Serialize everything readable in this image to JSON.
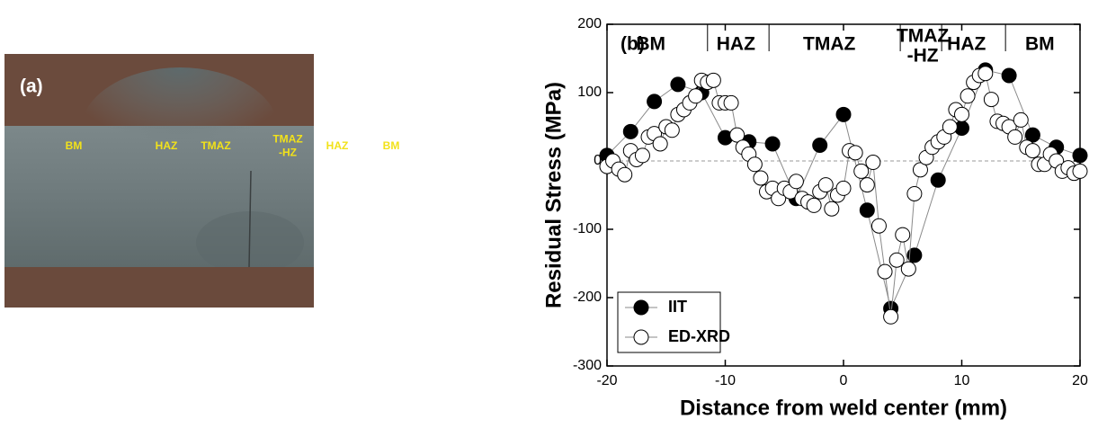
{
  "photo": {
    "panel_label": "(a)",
    "zones": [
      {
        "lines": [
          "BM"
        ]
      },
      {
        "lines": [
          "HAZ"
        ]
      },
      {
        "lines": [
          "TMAZ"
        ]
      },
      {
        "lines": [
          "TMAZ",
          "-HZ"
        ]
      },
      {
        "lines": [
          "HAZ"
        ]
      },
      {
        "lines": [
          "BM"
        ]
      }
    ]
  },
  "chart_data": {
    "type": "line",
    "panel_label": "(b)",
    "xlabel": "Distance from weld center (mm)",
    "ylabel": "Residual Stress (MPa)",
    "xlim": [
      -20,
      20
    ],
    "ylim": [
      -300,
      200
    ],
    "xticks": [
      -20,
      -10,
      0,
      10,
      20
    ],
    "yticks": [
      -300,
      -200,
      -100,
      0,
      100,
      200
    ],
    "grid": false,
    "hline": 0,
    "legend": "lower left",
    "zones": [
      {
        "lines": [
          "BM"
        ],
        "x": -16.3
      },
      {
        "lines": [
          "HAZ"
        ],
        "x": -9.1
      },
      {
        "lines": [
          "TMAZ"
        ],
        "x": -1.2
      },
      {
        "lines": [
          "TMAZ",
          "-HZ"
        ],
        "x": 6.7
      },
      {
        "lines": [
          "HAZ"
        ],
        "x": 10.4
      },
      {
        "lines": [
          "BM"
        ],
        "x": 16.6
      }
    ],
    "boundaries": [
      -11.5,
      -6.3,
      4.8,
      8.3,
      13.7
    ],
    "series": [
      {
        "name": "IIT",
        "color": "#000000",
        "marker": "filled",
        "x": [
          -20,
          -18,
          -16,
          -14,
          -12,
          -10,
          -8,
          -6,
          -4,
          -2,
          0,
          2,
          4,
          6,
          8,
          10,
          12,
          14,
          16,
          18,
          20
        ],
        "values": [
          8,
          43,
          87,
          112,
          100,
          34,
          28,
          25,
          -55,
          23,
          68,
          -72,
          -216,
          -138,
          -28,
          48,
          133,
          125,
          38,
          20,
          8
        ]
      },
      {
        "name": "ED-XRD",
        "color": "#000000",
        "marker": "open",
        "x": [
          -20,
          -19.5,
          -19,
          -18.5,
          -18,
          -17.5,
          -17,
          -16.5,
          -16,
          -15.5,
          -15,
          -14.5,
          -14,
          -13.5,
          -13,
          -12.5,
          -12,
          -11.5,
          -11,
          -10.5,
          -10,
          -9.5,
          -9,
          -8.5,
          -8,
          -7.5,
          -7,
          -6.5,
          -6,
          -5.5,
          -5,
          -4.5,
          -4,
          -3.5,
          -3,
          -2.5,
          -2,
          -1.5,
          -1,
          -0.5,
          0,
          0.5,
          1,
          1.5,
          2,
          2.5,
          3,
          3.5,
          4,
          4.5,
          5,
          5.5,
          6,
          6.5,
          7,
          7.5,
          8,
          8.5,
          9,
          9.5,
          10,
          10.5,
          11,
          11.5,
          12,
          12.5,
          13,
          13.5,
          14,
          14.5,
          15,
          15.5,
          16,
          16.5,
          17,
          17.5,
          18,
          18.5,
          19,
          19.5,
          20
        ],
        "values": [
          -8,
          0,
          -12,
          -20,
          15,
          2,
          8,
          35,
          40,
          25,
          50,
          45,
          68,
          75,
          85,
          95,
          118,
          115,
          118,
          85,
          85,
          85,
          38,
          20,
          10,
          -5,
          -25,
          -45,
          -40,
          -55,
          -40,
          -45,
          -30,
          -55,
          -60,
          -65,
          -45,
          -35,
          -70,
          -50,
          -40,
          15,
          12,
          -15,
          -35,
          -2,
          -95,
          -162,
          -228,
          -145,
          -108,
          -158,
          -48,
          -13,
          5,
          20,
          28,
          35,
          50,
          75,
          68,
          95,
          115,
          125,
          128,
          90,
          58,
          55,
          50,
          35,
          60,
          20,
          15,
          -5,
          -5,
          10,
          0,
          -15,
          -10,
          -18,
          -15
        ]
      }
    ]
  }
}
